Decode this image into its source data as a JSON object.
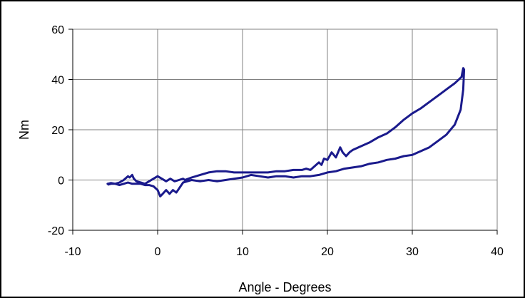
{
  "chart_data": {
    "type": "line",
    "title": "",
    "xlabel": "Angle - Degrees",
    "ylabel": "Nm",
    "xlim": [
      -10,
      40
    ],
    "ylim": [
      -20,
      60
    ],
    "x_ticks": [
      -10,
      0,
      10,
      20,
      30,
      40
    ],
    "y_ticks": [
      -20,
      0,
      20,
      40,
      60
    ],
    "x_tick_labels": [
      "-10",
      "0",
      "10",
      "20",
      "30",
      "40"
    ],
    "y_tick_labels": [
      "-20",
      "0",
      "20",
      "40",
      "60"
    ],
    "grid": "both",
    "legend": "none",
    "line_color": "#1a1a8c",
    "series": [
      {
        "x": [
          -5.9,
          -5.5,
          -5.0,
          -4.5,
          -4.0,
          -3.5,
          -3.3,
          -3.0,
          -2.8,
          -2.5,
          -2.0,
          -1.5,
          -1.0,
          -0.5,
          0.0,
          0.5,
          1.0,
          1.5,
          2.0,
          2.5,
          3.0,
          3.2,
          4.0,
          5.0,
          6.0,
          7.0,
          8.0,
          9.0,
          10.0,
          11.0,
          12.0,
          13.0,
          14.0,
          15.0,
          16.0,
          17.0,
          17.5,
          18.0,
          18.5,
          19.0,
          19.3,
          19.6,
          20.0,
          20.5,
          21.0,
          21.5,
          21.8,
          22.2,
          22.6,
          23.0,
          24.0,
          25.0,
          26.0,
          27.0,
          28.0,
          29.0,
          30.0,
          31.0,
          32.0,
          33.0,
          34.0,
          35.0,
          35.8,
          36.0,
          36.1,
          36.0,
          35.7,
          35.0,
          34.0,
          33.0,
          32.0,
          31.0,
          30.0,
          29.0,
          28.0,
          27.0,
          26.0,
          25.0,
          24.0,
          23.0,
          22.0,
          21.0,
          20.0,
          19.0,
          18.0,
          17.0,
          16.0,
          15.0,
          14.0,
          13.0,
          12.0,
          11.0,
          10.0,
          9.0,
          8.0,
          7.0,
          6.0,
          5.0,
          4.0,
          3.0,
          2.6,
          2.2,
          1.8,
          1.4,
          1.0,
          0.6,
          0.3,
          0.0,
          -0.5,
          -1.0,
          -1.5,
          -2.0,
          -2.5,
          -3.0,
          -3.5,
          -4.0,
          -4.5,
          -5.0,
          -5.5,
          -5.8
        ],
        "y": [
          -1.5,
          -1.2,
          -1.5,
          -1.0,
          0.0,
          1.5,
          1.0,
          2.0,
          0.5,
          -0.5,
          -1.0,
          -1.5,
          -0.5,
          0.5,
          1.5,
          0.5,
          -0.5,
          0.5,
          -0.5,
          0.0,
          0.5,
          0.0,
          1.0,
          2.0,
          3.0,
          3.5,
          3.5,
          3.0,
          3.0,
          3.0,
          3.0,
          3.0,
          3.5,
          3.5,
          4.0,
          4.0,
          4.5,
          4.0,
          5.5,
          7.0,
          6.0,
          8.5,
          8.0,
          11.0,
          9.0,
          13.0,
          11.0,
          9.5,
          11.0,
          12.0,
          13.5,
          15.0,
          17.0,
          18.5,
          21.0,
          24.0,
          26.5,
          28.5,
          31.0,
          33.5,
          36.0,
          38.5,
          41.0,
          44.5,
          44.0,
          36.0,
          28.0,
          22.0,
          18.0,
          15.5,
          13.0,
          11.5,
          10.0,
          9.5,
          8.5,
          8.0,
          7.0,
          6.5,
          5.5,
          5.0,
          4.5,
          3.5,
          3.0,
          2.0,
          1.5,
          1.5,
          1.0,
          1.5,
          1.5,
          1.0,
          1.5,
          2.0,
          1.0,
          0.5,
          0.0,
          -0.5,
          0.0,
          -0.5,
          0.0,
          -1.0,
          -3.0,
          -5.0,
          -4.0,
          -5.5,
          -4.0,
          -5.5,
          -6.5,
          -4.0,
          -2.5,
          -2.0,
          -2.0,
          -1.5,
          -1.5,
          -1.5,
          -1.0,
          -1.5,
          -2.0,
          -1.5,
          -1.5,
          -1.8
        ]
      }
    ]
  }
}
